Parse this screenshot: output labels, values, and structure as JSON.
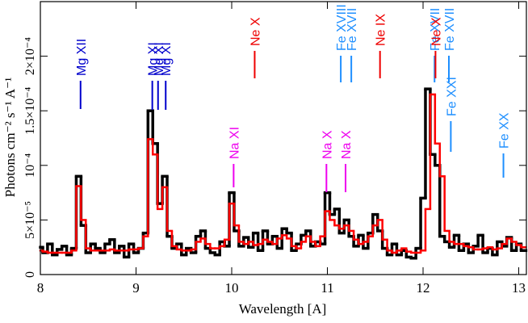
{
  "chart_data": {
    "type": "step",
    "xlabel": "Wavelength [A]",
    "ylabel": "Photons cm⁻² s⁻¹ A⁻¹",
    "xlim": [
      8,
      13.08
    ],
    "ylim": [
      0,
      0.00025
    ],
    "xticks": [
      8,
      9,
      10,
      11,
      12,
      13
    ],
    "yticks": [
      0,
      {
        "value": 5e-05,
        "label": "5×10⁻⁵"
      },
      {
        "value": 0.0001,
        "label": "10⁻⁴"
      },
      {
        "value": 0.00015,
        "label": "1.5×10⁻⁴"
      },
      {
        "value": 0.0002,
        "label": "2×10⁻⁴"
      }
    ],
    "x": [
      8.0,
      8.05,
      8.1,
      8.15,
      8.2,
      8.25,
      8.3,
      8.35,
      8.4,
      8.45,
      8.5,
      8.55,
      8.6,
      8.65,
      8.7,
      8.75,
      8.8,
      8.85,
      8.9,
      8.95,
      9.0,
      9.05,
      9.1,
      9.15,
      9.2,
      9.25,
      9.3,
      9.35,
      9.4,
      9.45,
      9.5,
      9.55,
      9.6,
      9.65,
      9.7,
      9.75,
      9.8,
      9.85,
      9.9,
      9.95,
      10.0,
      10.05,
      10.1,
      10.15,
      10.2,
      10.25,
      10.3,
      10.35,
      10.4,
      10.45,
      10.5,
      10.55,
      10.6,
      10.65,
      10.7,
      10.75,
      10.8,
      10.85,
      10.9,
      10.95,
      11.0,
      11.05,
      11.1,
      11.15,
      11.2,
      11.25,
      11.3,
      11.35,
      11.4,
      11.45,
      11.5,
      11.55,
      11.6,
      11.65,
      11.7,
      11.75,
      11.8,
      11.85,
      11.9,
      11.95,
      12.0,
      12.05,
      12.1,
      12.15,
      12.2,
      12.25,
      12.3,
      12.35,
      12.4,
      12.45,
      12.5,
      12.55,
      12.6,
      12.65,
      12.7,
      12.75,
      12.8,
      12.85,
      12.9,
      12.95,
      13.0,
      13.05
    ],
    "series": [
      {
        "color": "#000000",
        "values": [
          2.5e-05,
          2e-05,
          2.8e-05,
          1.8e-05,
          2.3e-05,
          2.6e-05,
          1.8e-05,
          2.4e-05,
          9e-05,
          4.5e-05,
          2e-05,
          2.8e-05,
          2.4e-05,
          2e-05,
          2.8e-05,
          3.2e-05,
          2e-05,
          2.6e-05,
          1.6e-05,
          2.8e-05,
          2e-05,
          2.4e-05,
          3.8e-05,
          0.00015,
          0.00012,
          6.5e-05,
          9e-05,
          3.5e-05,
          2.4e-05,
          2.8e-05,
          1.8e-05,
          2.4e-05,
          2e-05,
          3.5e-05,
          4e-05,
          2.4e-05,
          2e-05,
          1.8e-05,
          3e-05,
          2.6e-05,
          7.5e-05,
          4e-05,
          2.6e-05,
          3.4e-05,
          2.5e-05,
          3.8e-05,
          2.2e-05,
          4e-05,
          2.8e-05,
          3.5e-05,
          2.4e-05,
          4.2e-05,
          3.8e-05,
          2.2e-05,
          2.8e-05,
          3.6e-05,
          4e-05,
          2.6e-05,
          3e-05,
          2.8e-05,
          7.5e-05,
          5.5e-05,
          6e-05,
          3.8e-05,
          5e-05,
          3.5e-05,
          2.6e-05,
          3.6e-05,
          2.4e-05,
          3.8e-05,
          5.5e-05,
          4e-05,
          2.4e-05,
          1.8e-05,
          2.8e-05,
          1.8e-05,
          2.2e-05,
          1.6e-05,
          1.5e-05,
          2.4e-05,
          7e-05,
          0.00017,
          0.00011,
          0.0001,
          3.5e-05,
          3e-05,
          2.5e-05,
          3.6e-05,
          2.2e-05,
          2.8e-05,
          2e-05,
          2.6e-05,
          3.6e-05,
          2e-05,
          2.4e-05,
          1.8e-05,
          3e-05,
          2.6e-05,
          3.4e-05,
          2.2e-05,
          2.8e-05,
          2.2e-05
        ]
      },
      {
        "color": "#ff0000",
        "values": [
          2.2e-05,
          2.1e-05,
          2e-05,
          2e-05,
          2e-05,
          2e-05,
          2e-05,
          2.2e-05,
          8.1e-05,
          5e-05,
          2.4e-05,
          2.2e-05,
          2.2e-05,
          2.2e-05,
          2.2e-05,
          2.3e-05,
          2.2e-05,
          2.2e-05,
          2.2e-05,
          2.3e-05,
          2.3e-05,
          2.4e-05,
          3.5e-05,
          0.000124,
          0.00011,
          6e-05,
          8e-05,
          4e-05,
          2.6e-05,
          2.3e-05,
          2.2e-05,
          2.2e-05,
          2.3e-05,
          3e-05,
          3.3e-05,
          2.8e-05,
          2.4e-05,
          2.4e-05,
          2.6e-05,
          3.2e-05,
          6.5e-05,
          4.5e-05,
          3e-05,
          2.8e-05,
          3e-05,
          2.7e-05,
          2.8e-05,
          3.2e-05,
          3e-05,
          2.8e-05,
          3.3e-05,
          3.6e-05,
          3.3e-05,
          2.6e-05,
          2.4e-05,
          3e-05,
          3.5e-05,
          3e-05,
          2.6e-05,
          3.5e-05,
          5.8e-05,
          5e-05,
          4.5e-05,
          4.2e-05,
          4.5e-05,
          4e-05,
          3.2e-05,
          2.8e-05,
          3e-05,
          3.5e-05,
          4.5e-05,
          5e-05,
          3.2e-05,
          2.2e-05,
          2e-05,
          2.2e-05,
          2.4e-05,
          2.1e-05,
          2e-05,
          2e-05,
          2.2e-05,
          6e-05,
          0.000165,
          0.00012,
          9e-05,
          4e-05,
          3e-05,
          2.8e-05,
          2.8e-05,
          2.6e-05,
          2.5e-05,
          2.3e-05,
          2.3e-05,
          2.4e-05,
          2.5e-05,
          2.3e-05,
          2.4e-05,
          2.8e-05,
          3.3e-05,
          3e-05,
          2.7e-05,
          2.5e-05
        ]
      }
    ],
    "lines": [
      {
        "label": "Mg XII",
        "wavelength": 8.42,
        "color": "#0000cc"
      },
      {
        "label": "Mg XI",
        "wavelength": 9.17,
        "color": "#0000cc"
      },
      {
        "label": "Mg XI",
        "wavelength": 9.23,
        "color": "#0000cc"
      },
      {
        "label": "Mg XI",
        "wavelength": 9.31,
        "color": "#0000cc"
      },
      {
        "label": "Na XI",
        "wavelength": 10.02,
        "color": "#ee00ee"
      },
      {
        "label": "Ne X",
        "wavelength": 10.24,
        "color": "#ee0000"
      },
      {
        "label": "Na X",
        "wavelength": 10.99,
        "color": "#ee00ee"
      },
      {
        "label": "Fe XVIII",
        "wavelength": 11.14,
        "color": "#1e8fff"
      },
      {
        "label": "Na X",
        "wavelength": 11.19,
        "color": "#ee00ee"
      },
      {
        "label": "Fe XVII",
        "wavelength": 11.25,
        "color": "#1e8fff"
      },
      {
        "label": "Ne IX",
        "wavelength": 11.55,
        "color": "#ee0000"
      },
      {
        "label": "Fe XVII",
        "wavelength": 12.12,
        "color": "#1e8fff"
      },
      {
        "label": "Ne X",
        "wavelength": 12.13,
        "color": "#ee0000"
      },
      {
        "label": "Fe XVII",
        "wavelength": 12.27,
        "color": "#1e8fff"
      },
      {
        "label": "Fe XXI",
        "wavelength": 12.29,
        "color": "#1e8fff"
      },
      {
        "label": "Fe XX",
        "wavelength": 12.84,
        "color": "#1e8fff"
      }
    ]
  }
}
